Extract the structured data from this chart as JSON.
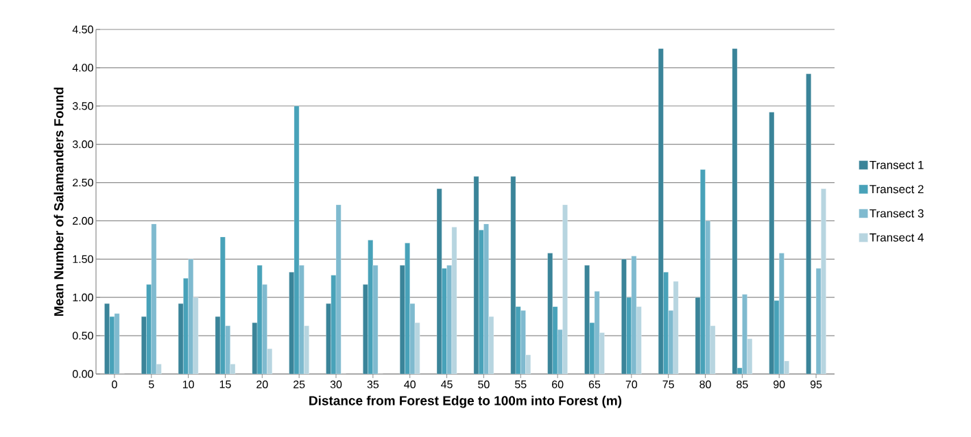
{
  "chart_data": {
    "type": "bar",
    "xlabel": "Distance from Forest Edge to 100m into Forest (m)",
    "ylabel": "Mean Number of Salamanders Found",
    "categories": [
      "0",
      "5",
      "10",
      "15",
      "20",
      "25",
      "30",
      "35",
      "40",
      "45",
      "50",
      "55",
      "60",
      "65",
      "70",
      "75",
      "80",
      "85",
      "90",
      "95"
    ],
    "series": [
      {
        "name": "Transect 1",
        "color": "#3a8499",
        "values": [
          0.92,
          0.75,
          0.92,
          0.75,
          0.67,
          1.33,
          0.92,
          1.17,
          1.42,
          2.42,
          2.58,
          2.58,
          1.58,
          1.42,
          1.5,
          4.25,
          1.0,
          4.25,
          3.42,
          3.92
        ]
      },
      {
        "name": "Transect 2",
        "color": "#48a2b9",
        "values": [
          0.75,
          1.17,
          1.25,
          1.79,
          1.42,
          3.5,
          1.29,
          1.75,
          1.71,
          1.38,
          1.88,
          0.88,
          0.88,
          0.67,
          1.0,
          1.33,
          2.67,
          0.08,
          0.96,
          0
        ]
      },
      {
        "name": "Transect 3",
        "color": "#7fbacf",
        "values": [
          0.79,
          1.96,
          1.5,
          0.63,
          1.17,
          1.42,
          2.21,
          1.42,
          0.92,
          1.42,
          1.96,
          0.83,
          0.58,
          1.08,
          1.54,
          0.83,
          2.0,
          1.04,
          1.58,
          1.38
        ]
      },
      {
        "name": "Transect 4",
        "color": "#b7d5e0",
        "values": [
          0,
          0.13,
          1.0,
          0.13,
          0.33,
          0.63,
          0,
          0,
          0.67,
          1.92,
          0.75,
          0.25,
          2.21,
          0.54,
          0.88,
          1.21,
          0.63,
          0.46,
          0.17,
          2.42
        ]
      }
    ],
    "ylim": [
      0,
      4.5
    ],
    "yticks": [
      {
        "value": 0,
        "label": "0.00"
      },
      {
        "value": 0.5,
        "label": "0.50"
      },
      {
        "value": 1,
        "label": "1.00"
      },
      {
        "value": 1.5,
        "label": "1.50"
      },
      {
        "value": 2,
        "label": "2.00"
      },
      {
        "value": 2.5,
        "label": "2.50"
      },
      {
        "value": 3,
        "label": "3.00"
      },
      {
        "value": 3.5,
        "label": "3.50"
      },
      {
        "value": 4,
        "label": "4.00"
      },
      {
        "value": 4.5,
        "label": "4.50"
      }
    ],
    "grid": "y",
    "legend": "right"
  }
}
